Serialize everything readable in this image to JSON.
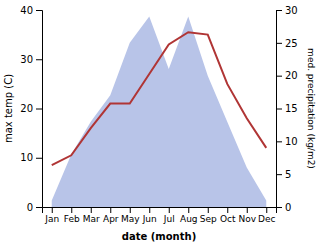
{
  "chart_data": {
    "type": "line",
    "x_label": "date (month)",
    "y_label": "max temp (C)",
    "y2_label": "med. precipitation (kg/m2)",
    "categories": [
      "Jan",
      "Feb",
      "Mar",
      "Apr",
      "May",
      "Jun",
      "Jul",
      "Aug",
      "Sep",
      "Oct",
      "Nov",
      "Dec"
    ],
    "ylim": [
      0,
      40
    ],
    "yticks": [
      0,
      10,
      20,
      30,
      40
    ],
    "y2lim": [
      0,
      30
    ],
    "y2ticks": [
      0,
      5,
      10,
      15,
      20,
      25,
      30
    ],
    "grid": false,
    "series": [
      {
        "type": "area",
        "axis": "y2",
        "color": "#b8c4e8",
        "values": [
          1.0,
          8.0,
          13.0,
          17.0,
          25.0,
          29.0,
          21.0,
          29.0,
          20.0,
          13.0,
          6.0,
          1.0
        ]
      },
      {
        "type": "line",
        "color": "#b03535",
        "values": [
          8.5,
          10.5,
          16.0,
          21.0,
          21.0,
          27.0,
          33.0,
          35.5,
          35.0,
          25.0,
          18.0,
          12.0
        ]
      }
    ]
  }
}
